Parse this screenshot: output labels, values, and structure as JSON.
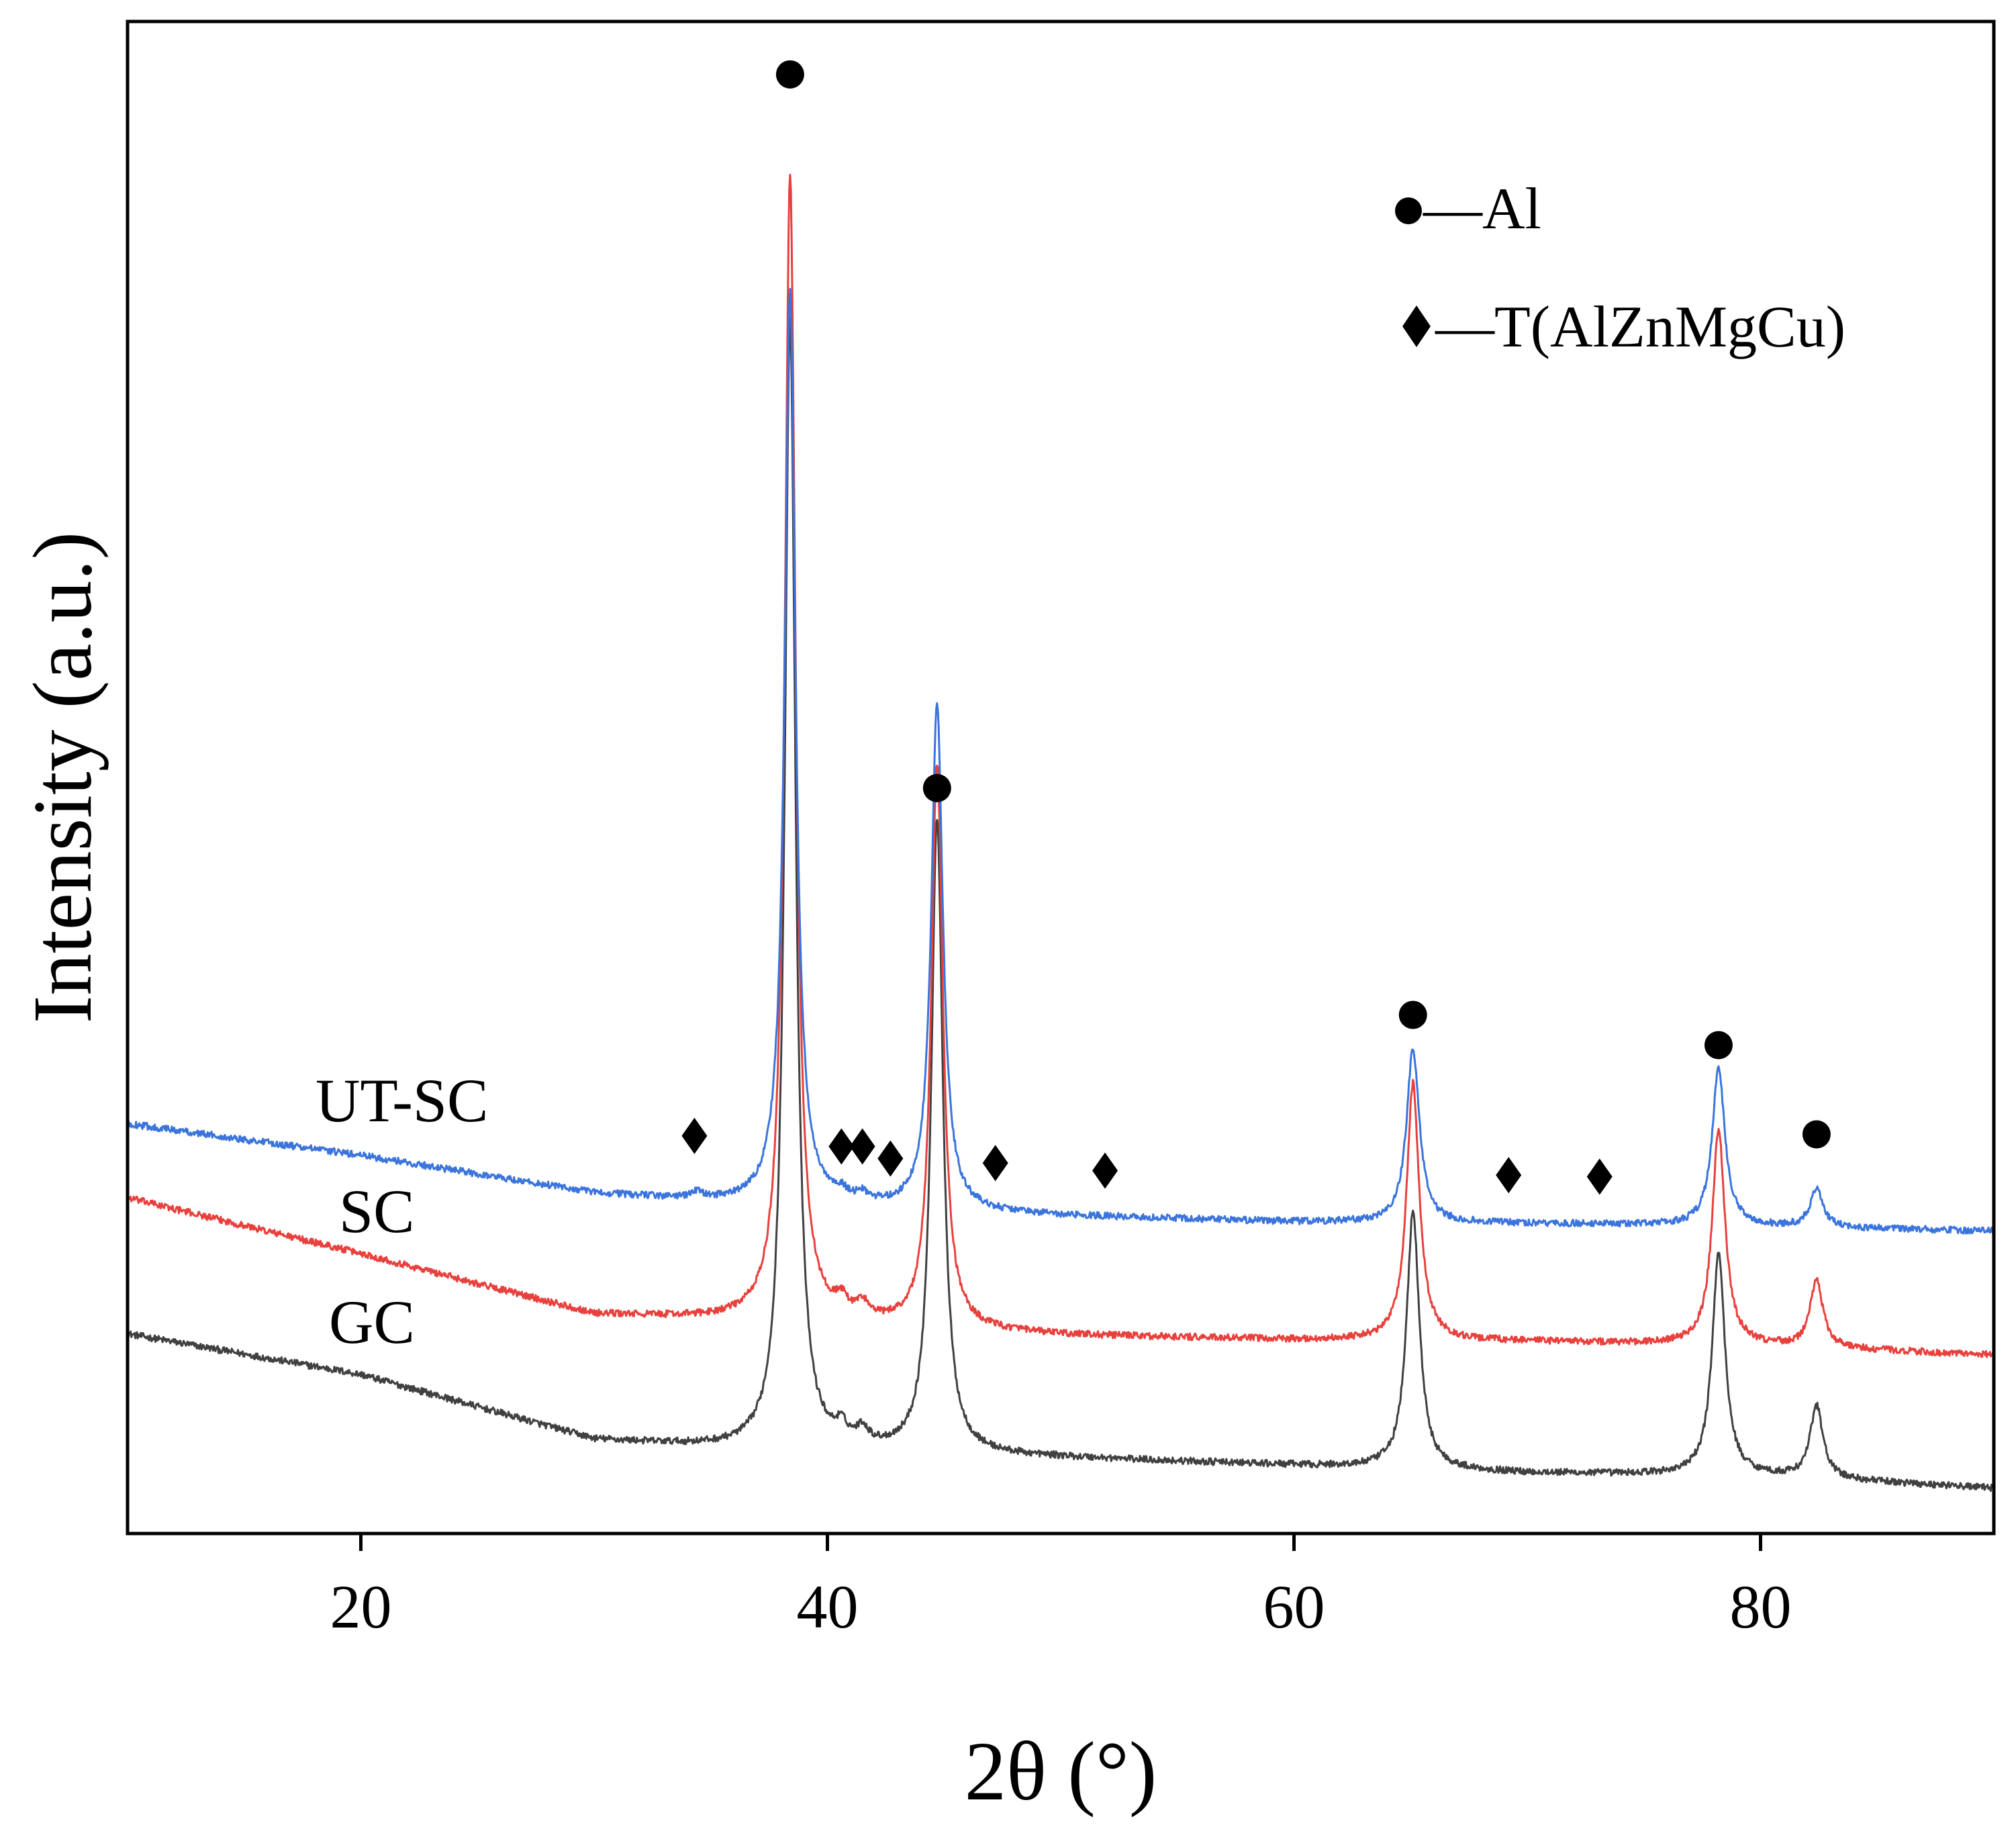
{
  "chart_data": {
    "type": "line",
    "title": "",
    "xlabel": "2θ (°)",
    "ylabel": "Intensity (a.u.)",
    "xlim": [
      10,
      90
    ],
    "ylim": [
      0,
      1
    ],
    "xticks": [
      20,
      40,
      60,
      80
    ],
    "grid": false,
    "series_note": "intensity in arbitrary units; curves vertically offset",
    "series": [
      {
        "name": "GC",
        "color": "#404040",
        "baseline": [
          [
            10,
            0.132
          ],
          [
            20,
            0.105
          ],
          [
            30,
            0.062
          ],
          [
            36,
            0.056
          ],
          [
            50,
            0.05
          ],
          [
            60,
            0.045
          ],
          [
            70,
            0.04
          ],
          [
            80,
            0.038
          ],
          [
            90,
            0.03
          ]
        ],
        "peaks": [
          [
            38.4,
            0.748,
            0.28
          ],
          [
            44.7,
            0.42,
            0.3
          ],
          [
            65.1,
            0.17,
            0.33
          ],
          [
            78.2,
            0.147,
            0.33
          ],
          [
            82.4,
            0.048,
            0.33
          ],
          [
            40.6,
            0.01,
            0.3
          ],
          [
            41.5,
            0.01,
            0.3
          ]
        ]
      },
      {
        "name": "SC",
        "color": "#e8403c",
        "baseline": [
          [
            10,
            0.222
          ],
          [
            20,
            0.185
          ],
          [
            30,
            0.145
          ],
          [
            36,
            0.141
          ],
          [
            50,
            0.131
          ],
          [
            60,
            0.128
          ],
          [
            70,
            0.127
          ],
          [
            80,
            0.124
          ],
          [
            90,
            0.118
          ]
        ],
        "peaks": [
          [
            38.4,
            0.758,
            0.28
          ],
          [
            44.7,
            0.373,
            0.3
          ],
          [
            65.1,
            0.17,
            0.33
          ],
          [
            78.2,
            0.142,
            0.33
          ],
          [
            82.4,
            0.044,
            0.33
          ],
          [
            40.6,
            0.01,
            0.3
          ],
          [
            41.5,
            0.01,
            0.3
          ]
        ]
      },
      {
        "name": "UT-SC",
        "color": "#3a74dc",
        "baseline": [
          [
            10,
            0.271
          ],
          [
            20,
            0.25
          ],
          [
            30,
            0.225
          ],
          [
            36,
            0.218
          ],
          [
            50,
            0.21
          ],
          [
            60,
            0.206
          ],
          [
            70,
            0.205
          ],
          [
            80,
            0.203
          ],
          [
            90,
            0.2
          ]
        ],
        "peaks": [
          [
            38.4,
            0.605,
            0.28
          ],
          [
            44.7,
            0.336,
            0.3
          ],
          [
            65.1,
            0.115,
            0.33
          ],
          [
            78.2,
            0.104,
            0.33
          ],
          [
            82.4,
            0.025,
            0.33
          ],
          [
            34.4,
            0.004,
            0.3
          ],
          [
            40.6,
            0.005,
            0.3
          ],
          [
            41.5,
            0.005,
            0.3
          ]
        ]
      }
    ],
    "annotations": {
      "al_peaks": [
        [
          38.4,
          0.965
        ],
        [
          44.7,
          0.493
        ],
        [
          65.1,
          0.343
        ],
        [
          78.2,
          0.323
        ],
        [
          82.4,
          0.264
        ]
      ],
      "t_phase_peaks": [
        [
          34.3,
          0.263
        ],
        [
          40.6,
          0.256
        ],
        [
          41.5,
          0.256
        ],
        [
          42.7,
          0.248
        ],
        [
          47.2,
          0.245
        ],
        [
          51.9,
          0.24
        ],
        [
          69.2,
          0.237
        ],
        [
          73.1,
          0.236
        ]
      ]
    },
    "curve_labels": [
      "UT-SC",
      "SC",
      "GC"
    ],
    "legend_position": "top-right",
    "legend": [
      {
        "marker": "circle",
        "label": "—Al"
      },
      {
        "marker": "diamond",
        "label": "—T(AlZnMgCu)"
      }
    ]
  }
}
